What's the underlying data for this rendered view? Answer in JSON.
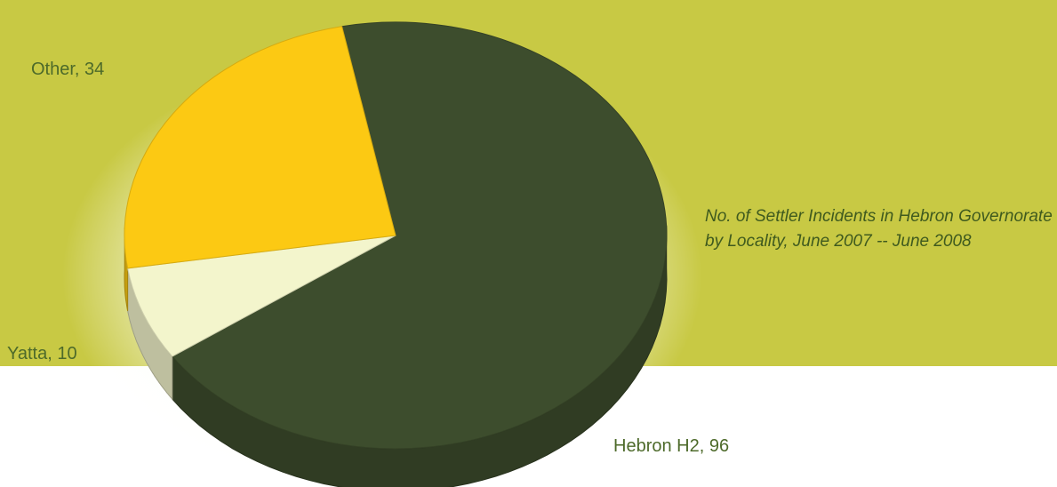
{
  "chart_data": {
    "type": "pie",
    "title": "No. of Settler Incidents in Hebron Governorate by Locality, June 2007 -- June 2008",
    "slices": [
      {
        "label": "Hebron H2",
        "value": 96,
        "color": "#3d4d2d",
        "display": "Hebron H2, 96"
      },
      {
        "label": "Yatta",
        "value": 10,
        "color": "#f3f5cc",
        "display": "Yatta, 10"
      },
      {
        "label": "Other",
        "value": 34,
        "color": "#fcc913",
        "display": "Other, 34"
      }
    ]
  },
  "colors": {
    "background": "#c8c944",
    "label_text": "#4d6a2a",
    "caption_text": "#3f5a1e"
  }
}
